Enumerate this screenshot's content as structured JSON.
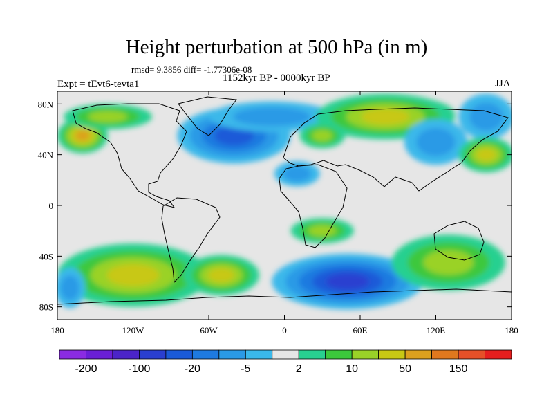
{
  "chart_data": {
    "type": "heatmap",
    "title": "Height perturbation at 500 hPa (in m)",
    "subtitle": "rmsd= 9.3856 diff= -1.77306e-08",
    "period": "1152kyr BP - 0000kyr BP",
    "experiment": "Expt = tEvt6-tevta1",
    "season": "JJA",
    "xlim": [
      -180,
      180
    ],
    "ylim": [
      -90,
      90
    ],
    "x_ticks": [
      {
        "value": -180,
        "label": "180"
      },
      {
        "value": -120,
        "label": "120W"
      },
      {
        "value": -60,
        "label": "60W"
      },
      {
        "value": 0,
        "label": "0"
      },
      {
        "value": 60,
        "label": "60E"
      },
      {
        "value": 120,
        "label": "120E"
      },
      {
        "value": 180,
        "label": "180"
      }
    ],
    "y_ticks": [
      {
        "value": 80,
        "label": "80N"
      },
      {
        "value": 40,
        "label": "40N"
      },
      {
        "value": 0,
        "label": "0"
      },
      {
        "value": -40,
        "label": "40S"
      },
      {
        "value": -80,
        "label": "80S"
      }
    ],
    "colorbar": {
      "colors": [
        "#8a2be2",
        "#6a1fd6",
        "#4b24c8",
        "#2a3fd0",
        "#1a5ad8",
        "#1e7ae0",
        "#2a9ae6",
        "#3ab8ea",
        "#e6e6e6",
        "#28d090",
        "#3cc83c",
        "#9ad228",
        "#c8c814",
        "#dca01e",
        "#e0781e",
        "#e65028",
        "#e61e1e"
      ],
      "labels": [
        {
          "boundary": 1,
          "text": "-200"
        },
        {
          "boundary": 3,
          "text": "-100"
        },
        {
          "boundary": 5,
          "text": "-20"
        },
        {
          "boundary": 7,
          "text": "-5"
        },
        {
          "boundary": 9,
          "text": "2"
        },
        {
          "boundary": 11,
          "text": "10"
        },
        {
          "boundary": 13,
          "text": "50"
        },
        {
          "boundary": 15,
          "text": "150"
        }
      ]
    },
    "anomalies": [
      {
        "lon": -40,
        "lat": 55,
        "rlon": 45,
        "rlat": 22,
        "level": 4
      },
      {
        "lon": -10,
        "lat": 70,
        "rlon": 50,
        "rlat": 12,
        "level": 6
      },
      {
        "lon": 90,
        "lat": 72,
        "rlon": 45,
        "rlat": 14,
        "level": 14
      },
      {
        "lon": 80,
        "lat": 70,
        "rlon": 55,
        "rlat": 18,
        "level": 12
      },
      {
        "lon": 120,
        "lat": 50,
        "rlon": 25,
        "rlat": 18,
        "level": 6
      },
      {
        "lon": 160,
        "lat": 70,
        "rlon": 22,
        "rlat": 18,
        "level": 6
      },
      {
        "lon": 160,
        "lat": 40,
        "rlon": 22,
        "rlat": 14,
        "level": 12
      },
      {
        "lon": -160,
        "lat": 55,
        "rlon": 20,
        "rlat": 14,
        "level": 13
      },
      {
        "lon": -140,
        "lat": 70,
        "rlon": 35,
        "rlat": 10,
        "level": 11
      },
      {
        "lon": 10,
        "lat": 25,
        "rlon": 18,
        "rlat": 10,
        "level": 6
      },
      {
        "lon": 30,
        "lat": 55,
        "rlon": 18,
        "rlat": 10,
        "level": 11
      },
      {
        "lon": -120,
        "lat": -55,
        "rlon": 60,
        "rlat": 25,
        "level": 12
      },
      {
        "lon": -50,
        "lat": -55,
        "rlon": 30,
        "rlat": 16,
        "level": 12
      },
      {
        "lon": 50,
        "lat": -60,
        "rlon": 60,
        "rlat": 22,
        "level": 3
      },
      {
        "lon": 130,
        "lat": -45,
        "rlon": 45,
        "rlat": 22,
        "level": 11
      },
      {
        "lon": 30,
        "lat": -20,
        "rlon": 25,
        "rlat": 10,
        "level": 11
      },
      {
        "lon": -170,
        "lat": -65,
        "rlon": 12,
        "rlat": 16,
        "level": 6
      }
    ]
  }
}
